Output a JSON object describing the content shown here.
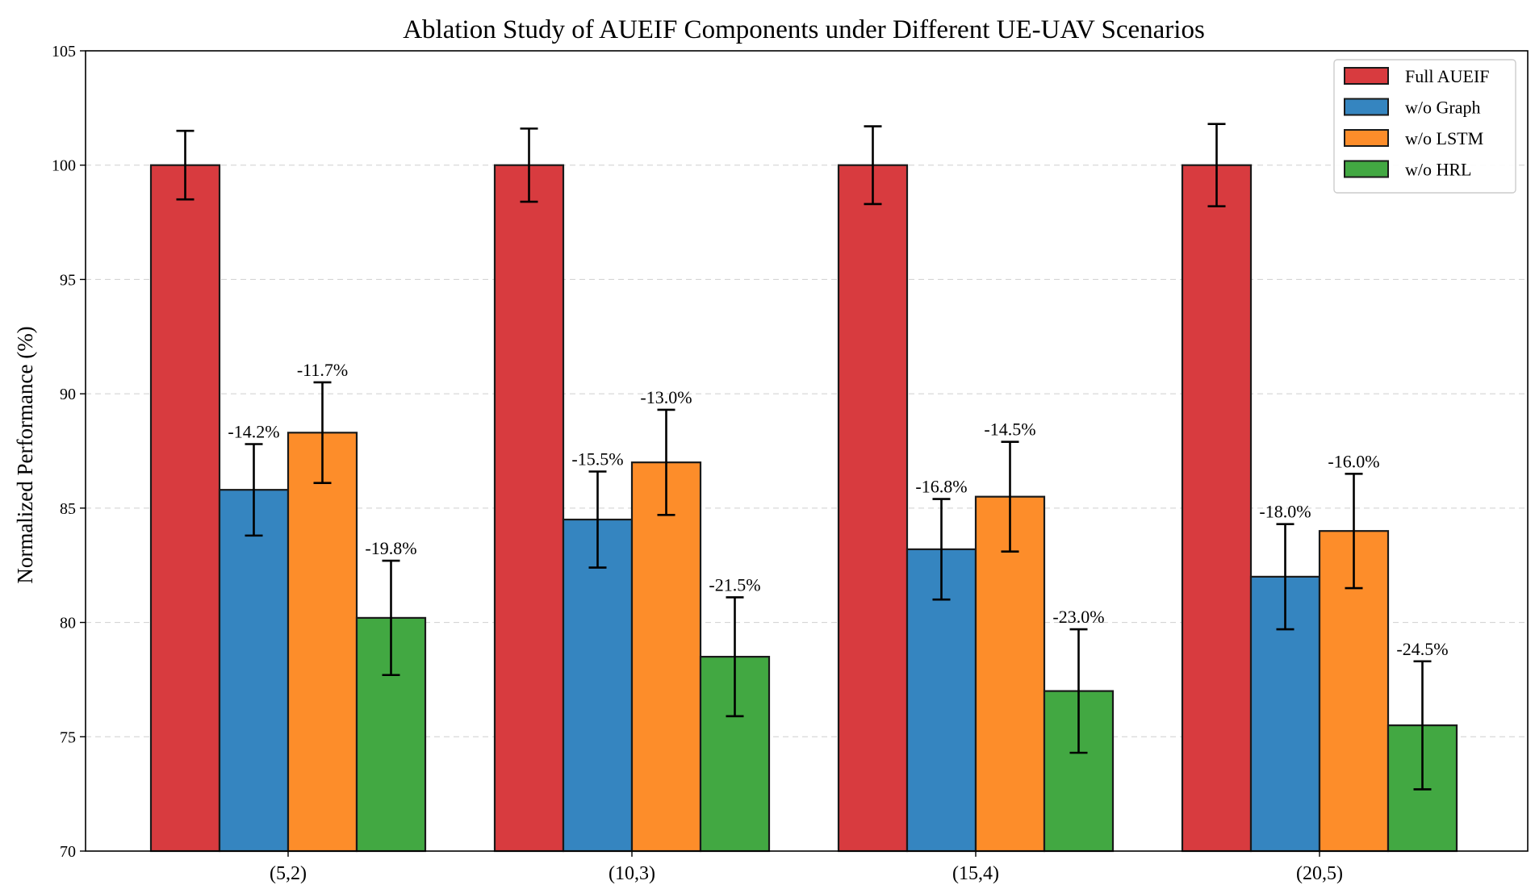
{
  "chart_data": {
    "type": "bar",
    "title": "Ablation Study of AUEIF Components under Different UE-UAV Scenarios",
    "xlabel": "",
    "ylabel": "Normalized Performance (%)",
    "ylim": [
      70,
      105
    ],
    "yticks": [
      70,
      75,
      80,
      85,
      90,
      95,
      100,
      105
    ],
    "grid": true,
    "legend_position": "top-right",
    "categories": [
      "(5,2)",
      "(10,3)",
      "(15,4)",
      "(20,5)"
    ],
    "series": [
      {
        "name": "Full AUEIF",
        "color": "#d83b3f",
        "values": [
          100,
          100,
          100,
          100
        ],
        "errors": [
          1.5,
          1.6,
          1.7,
          1.8
        ],
        "labels": [
          "",
          "",
          "",
          ""
        ]
      },
      {
        "name": "w/o Graph",
        "color": "#3585c0",
        "values": [
          85.8,
          84.5,
          83.2,
          82.0
        ],
        "errors": [
          2.0,
          2.1,
          2.2,
          2.3
        ],
        "labels": [
          "-14.2%",
          "-15.5%",
          "-16.8%",
          "-18.0%"
        ]
      },
      {
        "name": "w/o LSTM",
        "color": "#fd8d2a",
        "values": [
          88.3,
          87.0,
          85.5,
          84.0
        ],
        "errors": [
          2.2,
          2.3,
          2.4,
          2.5
        ],
        "labels": [
          "-11.7%",
          "-13.0%",
          "-14.5%",
          "-16.0%"
        ]
      },
      {
        "name": "w/o HRL",
        "color": "#42a842",
        "values": [
          80.2,
          78.5,
          77.0,
          75.5
        ],
        "errors": [
          2.5,
          2.6,
          2.7,
          2.8
        ],
        "labels": [
          "-19.8%",
          "-21.5%",
          "-23.0%",
          "-24.5%"
        ]
      }
    ]
  }
}
